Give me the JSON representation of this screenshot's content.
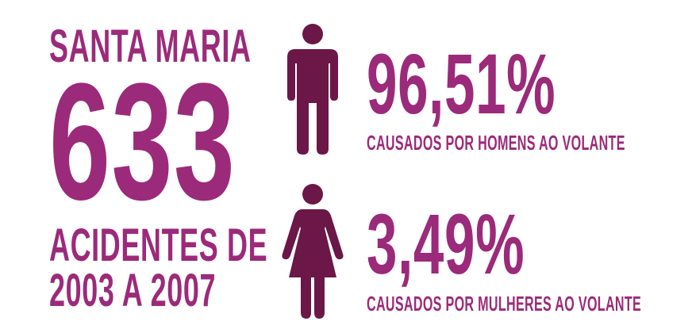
{
  "colors": {
    "text": "#9c2a7a",
    "icon": "#6b1747",
    "background": "#ffffff"
  },
  "left": {
    "city": "SANTA MARIA",
    "total": "633",
    "desc_line1": "ACIDENTES DE",
    "desc_line2": "2003 A 2007"
  },
  "men": {
    "icon": "male-figure-icon",
    "percent": "96,51%",
    "caption": "CAUSADOS POR HOMENS AO VOLANTE"
  },
  "women": {
    "icon": "female-figure-icon",
    "percent": "3,49%",
    "caption": "CAUSADOS POR MULHERES AO VOLANTE"
  }
}
